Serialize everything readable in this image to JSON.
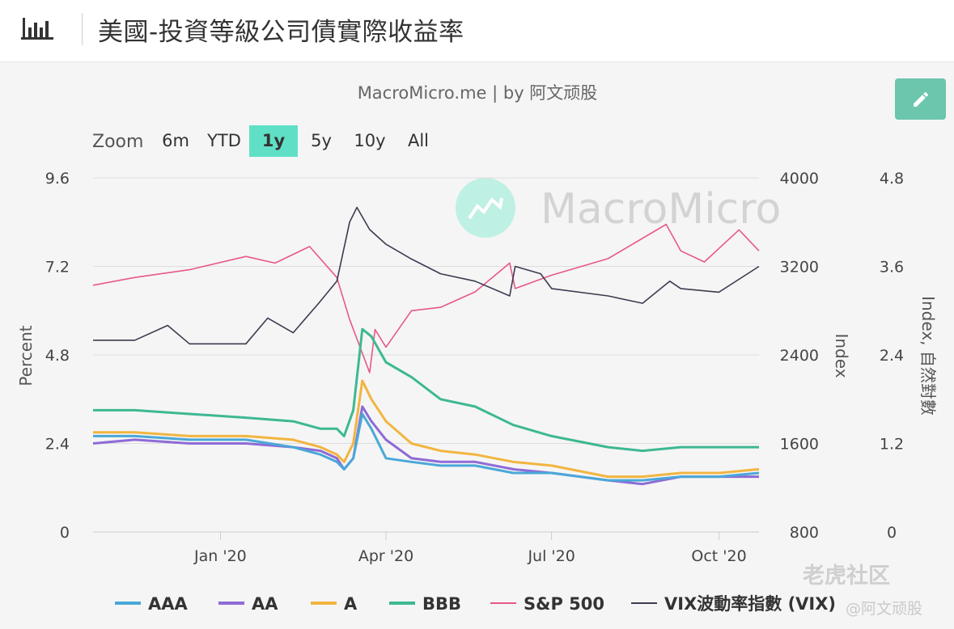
{
  "header": {
    "title": "美國-投資等級公司債實際收益率"
  },
  "chart_panel": {
    "subtitle": "MacroMicro.me | by 阿文顽股",
    "watermark": "MacroMicro",
    "zoom": {
      "label": "Zoom",
      "buttons": [
        "6m",
        "YTD",
        "1y",
        "5y",
        "10y",
        "All"
      ],
      "active": "1y"
    }
  },
  "overlay": {
    "tiger_watermark": "老虎社区",
    "author_watermark": "@阿文顽股"
  },
  "colors": {
    "accent": "#6cc5ad",
    "zoom_active": "#5fe0c6",
    "aaa": "#4aa8d8",
    "aa": "#8e6bd6",
    "a": "#f2b540",
    "bbb": "#3db892",
    "sp500": "#e8588a",
    "vix": "#3c3c50"
  },
  "chart_data": {
    "type": "line",
    "x_tick_labels": [
      "Jan '20",
      "Apr '20",
      "Jul '20",
      "Oct '20"
    ],
    "x_tick_dates": [
      "2020-01-01",
      "2020-04-01",
      "2020-07-01",
      "2020-10-01"
    ],
    "x_range": [
      "2019-10-23",
      "2020-10-23"
    ],
    "y_axes": [
      {
        "id": "left",
        "label": "Percent",
        "range": [
          0,
          9.6
        ],
        "ticks": [
          "0",
          "2.4",
          "4.8",
          "7.2",
          "9.6"
        ]
      },
      {
        "id": "index",
        "label": "Index",
        "range": [
          800,
          4000
        ],
        "ticks": [
          "800",
          "1600",
          "2400",
          "3200",
          "4000"
        ]
      },
      {
        "id": "vix",
        "label": "Index, 自然對數",
        "range": [
          0,
          4.8
        ],
        "ticks": [
          "0",
          "1.2",
          "2.4",
          "3.6",
          "4.8"
        ]
      }
    ],
    "grid": true,
    "legend_position": "bottom",
    "series": [
      {
        "key": "aaa",
        "name": "AAA",
        "axis": "left",
        "points": [
          [
            "2019-10-23",
            2.6
          ],
          [
            "2019-11-15",
            2.6
          ],
          [
            "2019-12-15",
            2.5
          ],
          [
            "2020-01-15",
            2.5
          ],
          [
            "2020-02-10",
            2.3
          ],
          [
            "2020-02-25",
            2.1
          ],
          [
            "2020-03-05",
            1.9
          ],
          [
            "2020-03-09",
            1.7
          ],
          [
            "2020-03-14",
            2.0
          ],
          [
            "2020-03-19",
            3.2
          ],
          [
            "2020-03-24",
            2.8
          ],
          [
            "2020-04-01",
            2.0
          ],
          [
            "2020-04-15",
            1.9
          ],
          [
            "2020-05-01",
            1.8
          ],
          [
            "2020-05-20",
            1.8
          ],
          [
            "2020-06-10",
            1.6
          ],
          [
            "2020-07-01",
            1.6
          ],
          [
            "2020-08-01",
            1.4
          ],
          [
            "2020-08-20",
            1.4
          ],
          [
            "2020-09-10",
            1.5
          ],
          [
            "2020-10-01",
            1.5
          ],
          [
            "2020-10-23",
            1.6
          ]
        ]
      },
      {
        "key": "aa",
        "name": "AA",
        "axis": "left",
        "points": [
          [
            "2019-10-23",
            2.4
          ],
          [
            "2019-11-15",
            2.5
          ],
          [
            "2019-12-15",
            2.4
          ],
          [
            "2020-01-15",
            2.4
          ],
          [
            "2020-02-10",
            2.3
          ],
          [
            "2020-02-25",
            2.2
          ],
          [
            "2020-03-05",
            2.0
          ],
          [
            "2020-03-09",
            1.7
          ],
          [
            "2020-03-14",
            2.0
          ],
          [
            "2020-03-19",
            3.4
          ],
          [
            "2020-03-24",
            3.0
          ],
          [
            "2020-04-01",
            2.5
          ],
          [
            "2020-04-15",
            2.0
          ],
          [
            "2020-05-01",
            1.9
          ],
          [
            "2020-05-20",
            1.9
          ],
          [
            "2020-06-10",
            1.7
          ],
          [
            "2020-07-01",
            1.6
          ],
          [
            "2020-08-01",
            1.4
          ],
          [
            "2020-08-20",
            1.3
          ],
          [
            "2020-09-10",
            1.5
          ],
          [
            "2020-10-01",
            1.5
          ],
          [
            "2020-10-23",
            1.5
          ]
        ]
      },
      {
        "key": "a",
        "name": "A",
        "axis": "left",
        "points": [
          [
            "2019-10-23",
            2.7
          ],
          [
            "2019-11-15",
            2.7
          ],
          [
            "2019-12-15",
            2.6
          ],
          [
            "2020-01-15",
            2.6
          ],
          [
            "2020-02-10",
            2.5
          ],
          [
            "2020-02-25",
            2.3
          ],
          [
            "2020-03-05",
            2.1
          ],
          [
            "2020-03-09",
            1.9
          ],
          [
            "2020-03-14",
            2.4
          ],
          [
            "2020-03-19",
            4.1
          ],
          [
            "2020-03-24",
            3.6
          ],
          [
            "2020-04-01",
            3.0
          ],
          [
            "2020-04-15",
            2.4
          ],
          [
            "2020-05-01",
            2.2
          ],
          [
            "2020-05-20",
            2.1
          ],
          [
            "2020-06-10",
            1.9
          ],
          [
            "2020-07-01",
            1.8
          ],
          [
            "2020-08-01",
            1.5
          ],
          [
            "2020-08-20",
            1.5
          ],
          [
            "2020-09-10",
            1.6
          ],
          [
            "2020-10-01",
            1.6
          ],
          [
            "2020-10-23",
            1.7
          ]
        ]
      },
      {
        "key": "bbb",
        "name": "BBB",
        "axis": "left",
        "points": [
          [
            "2019-10-23",
            3.3
          ],
          [
            "2019-11-15",
            3.3
          ],
          [
            "2019-12-15",
            3.2
          ],
          [
            "2020-01-15",
            3.1
          ],
          [
            "2020-02-10",
            3.0
          ],
          [
            "2020-02-25",
            2.8
          ],
          [
            "2020-03-05",
            2.8
          ],
          [
            "2020-03-09",
            2.6
          ],
          [
            "2020-03-14",
            3.3
          ],
          [
            "2020-03-19",
            5.5
          ],
          [
            "2020-03-24",
            5.3
          ],
          [
            "2020-04-01",
            4.6
          ],
          [
            "2020-04-15",
            4.2
          ],
          [
            "2020-05-01",
            3.6
          ],
          [
            "2020-05-20",
            3.4
          ],
          [
            "2020-06-10",
            2.9
          ],
          [
            "2020-07-01",
            2.6
          ],
          [
            "2020-08-01",
            2.3
          ],
          [
            "2020-08-20",
            2.2
          ],
          [
            "2020-09-10",
            2.3
          ],
          [
            "2020-10-01",
            2.3
          ],
          [
            "2020-10-23",
            2.3
          ]
        ]
      },
      {
        "key": "sp500",
        "name": "S&P 500",
        "axis": "index",
        "points": [
          [
            "2019-10-23",
            3030
          ],
          [
            "2019-11-15",
            3100
          ],
          [
            "2019-12-15",
            3170
          ],
          [
            "2020-01-15",
            3290
          ],
          [
            "2020-01-31",
            3230
          ],
          [
            "2020-02-19",
            3380
          ],
          [
            "2020-03-05",
            3100
          ],
          [
            "2020-03-12",
            2720
          ],
          [
            "2020-03-23",
            2240
          ],
          [
            "2020-03-26",
            2630
          ],
          [
            "2020-04-01",
            2470
          ],
          [
            "2020-04-15",
            2800
          ],
          [
            "2020-05-01",
            2830
          ],
          [
            "2020-05-20",
            2970
          ],
          [
            "2020-06-08",
            3230
          ],
          [
            "2020-06-11",
            3000
          ],
          [
            "2020-07-01",
            3120
          ],
          [
            "2020-08-01",
            3270
          ],
          [
            "2020-09-02",
            3580
          ],
          [
            "2020-09-10",
            3340
          ],
          [
            "2020-09-23",
            3240
          ],
          [
            "2020-10-12",
            3530
          ],
          [
            "2020-10-23",
            3340
          ]
        ]
      },
      {
        "key": "vix",
        "name": "VIX波動率指數 (VIX)",
        "axis": "vix",
        "points": [
          [
            "2019-10-23",
            2.6
          ],
          [
            "2019-11-15",
            2.6
          ],
          [
            "2019-12-03",
            2.8
          ],
          [
            "2019-12-15",
            2.55
          ],
          [
            "2020-01-15",
            2.55
          ],
          [
            "2020-01-27",
            2.9
          ],
          [
            "2020-02-10",
            2.7
          ],
          [
            "2020-02-24",
            3.1
          ],
          [
            "2020-03-05",
            3.4
          ],
          [
            "2020-03-12",
            4.2
          ],
          [
            "2020-03-16",
            4.4
          ],
          [
            "2020-03-23",
            4.1
          ],
          [
            "2020-04-01",
            3.9
          ],
          [
            "2020-04-15",
            3.7
          ],
          [
            "2020-05-01",
            3.5
          ],
          [
            "2020-05-20",
            3.4
          ],
          [
            "2020-06-08",
            3.2
          ],
          [
            "2020-06-11",
            3.6
          ],
          [
            "2020-06-25",
            3.5
          ],
          [
            "2020-07-01",
            3.3
          ],
          [
            "2020-08-01",
            3.2
          ],
          [
            "2020-08-20",
            3.1
          ],
          [
            "2020-09-04",
            3.4
          ],
          [
            "2020-09-10",
            3.3
          ],
          [
            "2020-10-01",
            3.25
          ],
          [
            "2020-10-23",
            3.6
          ]
        ]
      }
    ]
  },
  "legend": [
    {
      "key": "aaa",
      "label": "AAA"
    },
    {
      "key": "aa",
      "label": "AA"
    },
    {
      "key": "a",
      "label": "A"
    },
    {
      "key": "bbb",
      "label": "BBB"
    },
    {
      "key": "sp500",
      "label": "S&P 500"
    },
    {
      "key": "vix",
      "label": "VIX波動率指數 (VIX)"
    }
  ]
}
